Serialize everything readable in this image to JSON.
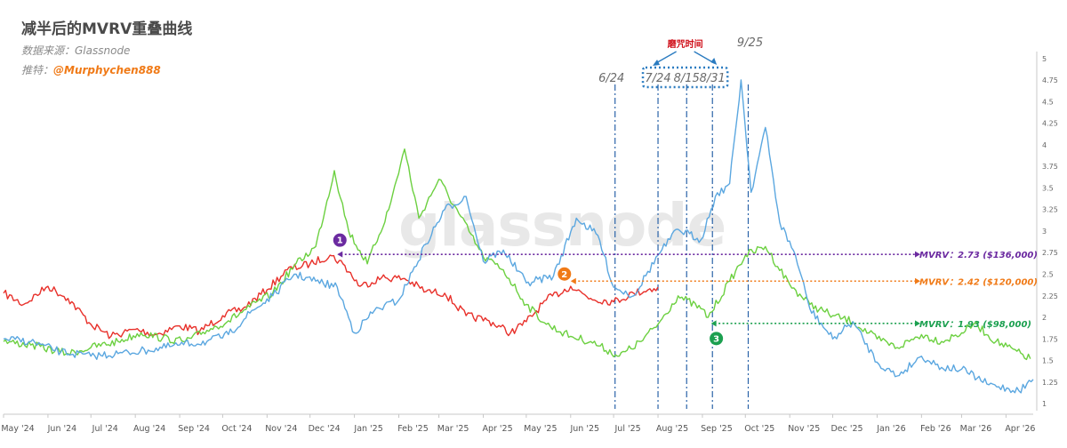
{
  "header": {
    "title": "减半后的MVRV重叠曲线",
    "source": "数据来源：Glassnode",
    "twitter_prefix": "推特：",
    "twitter_handle": "@Murphychen888"
  },
  "watermark": "glassnode",
  "chart_data": {
    "type": "line",
    "x_start": "2024-05-01",
    "x_end": "2026-04-20",
    "x_tick_labels": [
      "May '24",
      "Jun '24",
      "Jul '24",
      "Aug '24",
      "Sep '24",
      "Oct '24",
      "Nov '24",
      "Dec '24",
      "Jan '25",
      "Feb '25",
      "Mar '25",
      "Apr '25",
      "May '25",
      "Jun '25",
      "Jul '25",
      "Aug '25",
      "Sep '25",
      "Oct '25",
      "Nov '25",
      "Dec '25",
      "Jan '26",
      "Feb '26",
      "Mar '26",
      "Apr '26"
    ],
    "ylim": [
      0.96,
      5.08
    ],
    "y_ticks": [
      1,
      1.25,
      1.5,
      1.75,
      2,
      2.25,
      2.5,
      2.75,
      3,
      3.25,
      3.5,
      3.75,
      4,
      4.25,
      4.5,
      4.75,
      5
    ],
    "grid": false,
    "series": [
      {
        "color": "#e8302a",
        "points": [
          [
            "2024-05-01",
            2.28
          ],
          [
            "2024-05-15",
            2.15
          ],
          [
            "2024-06-01",
            2.36
          ],
          [
            "2024-06-15",
            2.22
          ],
          [
            "2024-07-01",
            1.92
          ],
          [
            "2024-07-15",
            1.78
          ],
          [
            "2024-08-01",
            1.86
          ],
          [
            "2024-08-15",
            1.8
          ],
          [
            "2024-09-01",
            1.9
          ],
          [
            "2024-09-15",
            1.84
          ],
          [
            "2024-10-01",
            2.02
          ],
          [
            "2024-10-15",
            2.1
          ],
          [
            "2024-11-01",
            2.32
          ],
          [
            "2024-11-15",
            2.55
          ],
          [
            "2024-12-01",
            2.62
          ],
          [
            "2024-12-15",
            2.72
          ],
          [
            "2024-12-24",
            2.62
          ],
          [
            "2025-01-05",
            2.36
          ],
          [
            "2025-01-20",
            2.46
          ],
          [
            "2025-02-05",
            2.45
          ],
          [
            "2025-02-20",
            2.3
          ],
          [
            "2025-03-05",
            2.28
          ],
          [
            "2025-03-20",
            2.02
          ],
          [
            "2025-04-05",
            1.96
          ],
          [
            "2025-04-20",
            1.82
          ],
          [
            "2025-05-01",
            1.95
          ],
          [
            "2025-05-15",
            2.2
          ],
          [
            "2025-06-01",
            2.36
          ],
          [
            "2025-06-15",
            2.22
          ],
          [
            "2025-07-01",
            2.18
          ],
          [
            "2025-07-15",
            2.28
          ],
          [
            "2025-08-01",
            2.35
          ]
        ]
      },
      {
        "color": "#6cd040",
        "points": [
          [
            "2024-05-01",
            1.72
          ],
          [
            "2024-05-20",
            1.68
          ],
          [
            "2024-06-15",
            1.58
          ],
          [
            "2024-07-01",
            1.65
          ],
          [
            "2024-07-20",
            1.72
          ],
          [
            "2024-08-05",
            1.82
          ],
          [
            "2024-08-20",
            1.76
          ],
          [
            "2024-09-05",
            1.72
          ],
          [
            "2024-09-20",
            1.85
          ],
          [
            "2024-10-05",
            1.96
          ],
          [
            "2024-10-20",
            2.12
          ],
          [
            "2024-11-05",
            2.28
          ],
          [
            "2024-11-20",
            2.6
          ],
          [
            "2024-12-05",
            2.82
          ],
          [
            "2024-12-18",
            3.7
          ],
          [
            "2024-12-28",
            3.0
          ],
          [
            "2025-01-10",
            2.62
          ],
          [
            "2025-01-25",
            3.25
          ],
          [
            "2025-02-05",
            3.95
          ],
          [
            "2025-02-15",
            3.15
          ],
          [
            "2025-03-01",
            3.6
          ],
          [
            "2025-03-15",
            3.2
          ],
          [
            "2025-04-01",
            2.7
          ],
          [
            "2025-04-15",
            2.55
          ],
          [
            "2025-05-01",
            2.15
          ],
          [
            "2025-05-15",
            1.92
          ],
          [
            "2025-06-01",
            1.78
          ],
          [
            "2025-06-15",
            1.72
          ],
          [
            "2025-07-05",
            1.55
          ],
          [
            "2025-07-20",
            1.72
          ],
          [
            "2025-08-01",
            1.92
          ],
          [
            "2025-08-15",
            2.25
          ],
          [
            "2025-08-31",
            2.1
          ],
          [
            "2025-09-05",
            2.0
          ],
          [
            "2025-09-20",
            2.42
          ],
          [
            "2025-10-01",
            2.72
          ],
          [
            "2025-10-15",
            2.82
          ],
          [
            "2025-11-01",
            2.38
          ],
          [
            "2025-11-15",
            2.15
          ],
          [
            "2025-12-01",
            2.02
          ],
          [
            "2025-12-15",
            1.95
          ],
          [
            "2026-01-01",
            1.75
          ],
          [
            "2026-01-15",
            1.65
          ],
          [
            "2026-02-01",
            1.8
          ],
          [
            "2026-02-15",
            1.72
          ],
          [
            "2026-03-01",
            1.82
          ],
          [
            "2026-03-10",
            1.93
          ],
          [
            "2026-03-25",
            1.72
          ],
          [
            "2026-04-18",
            1.52
          ]
        ]
      },
      {
        "color": "#5ba7e0",
        "points": [
          [
            "2024-05-01",
            1.75
          ],
          [
            "2024-05-20",
            1.72
          ],
          [
            "2024-06-10",
            1.6
          ],
          [
            "2024-07-01",
            1.55
          ],
          [
            "2024-07-20",
            1.58
          ],
          [
            "2024-08-10",
            1.62
          ],
          [
            "2024-09-01",
            1.68
          ],
          [
            "2024-09-20",
            1.72
          ],
          [
            "2024-10-05",
            1.8
          ],
          [
            "2024-10-20",
            2.05
          ],
          [
            "2024-11-05",
            2.25
          ],
          [
            "2024-11-20",
            2.5
          ],
          [
            "2024-12-05",
            2.42
          ],
          [
            "2024-12-20",
            2.35
          ],
          [
            "2025-01-01",
            1.82
          ],
          [
            "2025-01-15",
            2.08
          ],
          [
            "2025-02-01",
            2.2
          ],
          [
            "2025-02-20",
            2.85
          ],
          [
            "2025-03-05",
            3.25
          ],
          [
            "2025-03-20",
            3.4
          ],
          [
            "2025-04-01",
            2.65
          ],
          [
            "2025-04-15",
            2.78
          ],
          [
            "2025-05-01",
            2.4
          ],
          [
            "2025-05-20",
            2.48
          ],
          [
            "2025-06-05",
            3.15
          ],
          [
            "2025-06-20",
            2.95
          ],
          [
            "2025-07-01",
            2.35
          ],
          [
            "2025-07-15",
            2.25
          ],
          [
            "2025-08-01",
            2.72
          ],
          [
            "2025-08-15",
            3.02
          ],
          [
            "2025-08-31",
            2.9
          ],
          [
            "2025-09-10",
            3.4
          ],
          [
            "2025-09-20",
            3.55
          ],
          [
            "2025-09-28",
            4.75
          ],
          [
            "2025-10-05",
            3.45
          ],
          [
            "2025-10-15",
            4.2
          ],
          [
            "2025-10-25",
            3.1
          ],
          [
            "2025-11-05",
            2.72
          ],
          [
            "2025-11-15",
            2.1
          ],
          [
            "2025-12-01",
            1.75
          ],
          [
            "2025-12-15",
            1.95
          ],
          [
            "2026-01-01",
            1.48
          ],
          [
            "2026-01-15",
            1.32
          ],
          [
            "2026-02-01",
            1.55
          ],
          [
            "2026-02-15",
            1.42
          ],
          [
            "2026-03-01",
            1.4
          ],
          [
            "2026-03-20",
            1.22
          ],
          [
            "2026-04-10",
            1.15
          ],
          [
            "2026-04-20",
            1.28
          ]
        ]
      }
    ],
    "vertical_lines": [
      {
        "label": "6/24",
        "date": "2025-07-02"
      },
      {
        "label": "7/24",
        "date": "2025-08-01"
      },
      {
        "label": "8/15",
        "date": "2025-08-21"
      },
      {
        "label": "8/31",
        "date": "2025-09-08"
      },
      {
        "label": "9/25",
        "date": "2025-10-03"
      }
    ],
    "period_label": "磨咒时间",
    "reference_lines": [
      {
        "marker": "1",
        "color": "#6b2aa0",
        "from_date": "2024-12-20",
        "value": 2.73,
        "label": "MVRV：2.73 ($136,000)"
      },
      {
        "marker": "2",
        "color": "#f07a17",
        "from_date": "2025-06-01",
        "value": 2.42,
        "label": "MVRV：2.42 ($120,000)"
      },
      {
        "marker": "3",
        "color": "#1ca050",
        "from_date": "2025-09-07",
        "value": 1.93,
        "label": "MVRV：1.93 ($98,000)"
      }
    ]
  }
}
